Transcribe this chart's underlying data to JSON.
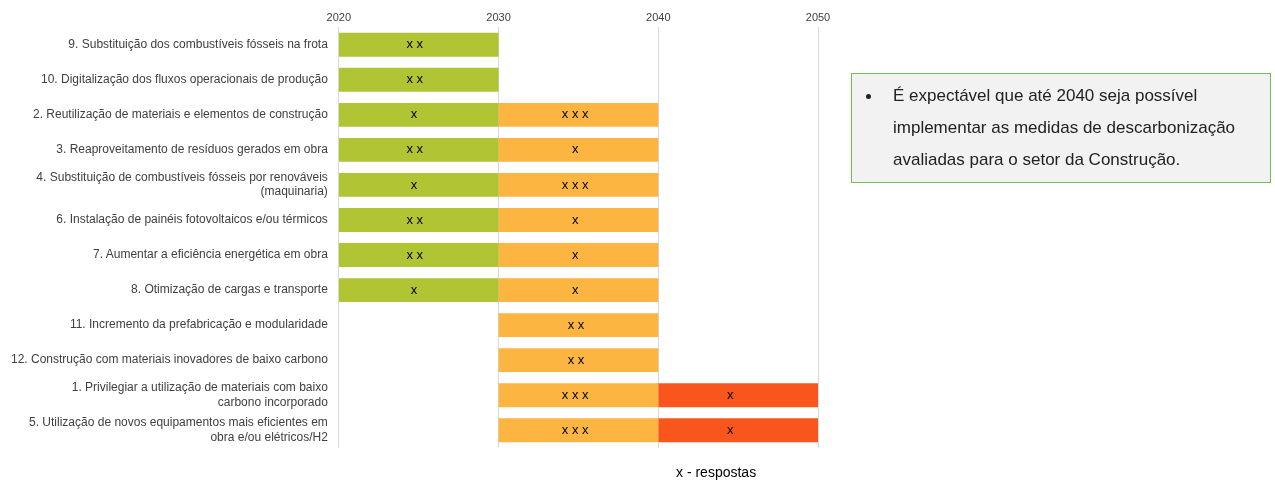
{
  "chart_data": {
    "type": "bar",
    "orientation": "horizontal",
    "grid": "x",
    "categories": [
      "9. Substituição dos combustíveis fósseis na frota",
      "10. Digitalização dos fluxos operacionais de produção",
      "2. Reutilização de materiais e elementos de construção",
      "3. Reaproveitamento de resíduos gerados em obra",
      "4. Substituição de combustíveis fósseis por renováveis (maquinaria)",
      "6. Instalação de painéis fotovoltaicos e/ou térmicos",
      "7. Aumentar a eficiência energética em obra",
      "8. Otimização de cargas e transporte",
      "11. Incremento da prefabricação e modularidade",
      "12. Construção com materiais inovadores de baixo carbono",
      "1. Privilegiar a utilização de materiais com baixo carbono incorporado",
      "5. Utilização de novos equipamentos mais eficientes em obra e/ou elétricos/H2"
    ],
    "series": [
      {
        "color": "#b0c434",
        "base": [
          2020,
          2020,
          2020,
          2020,
          2020,
          2020,
          2020,
          2020,
          null,
          null,
          null,
          null
        ],
        "values": [
          10,
          10,
          10,
          10,
          10,
          10,
          10,
          10,
          null,
          null,
          null,
          null
        ]
      },
      {
        "color": "#fbb540",
        "base": [
          null,
          null,
          2030,
          2030,
          2030,
          2030,
          2030,
          2030,
          2030,
          2030,
          2030,
          2030
        ],
        "values": [
          null,
          null,
          10,
          10,
          10,
          10,
          10,
          10,
          10,
          10,
          10,
          10
        ]
      },
      {
        "color": "#f8561c",
        "base": [
          null,
          null,
          null,
          null,
          null,
          null,
          null,
          null,
          null,
          null,
          2040,
          2040
        ],
        "values": [
          null,
          null,
          null,
          null,
          null,
          null,
          null,
          null,
          null,
          null,
          10,
          10
        ]
      }
    ],
    "xlim": [
      2020,
      2050
    ],
    "xticks": [
      2020,
      2030,
      2040,
      2050
    ],
    "annotations": [
      "É expectável que até 2040 seja possível implementar as medidas de descarbonização avaliadas para o setor da Construção.",
      "x - respostas",
      {
        "text": "x x",
        "x": 2024.75,
        "y": "9. Substituição dos combustíveis fósseis na frota"
      },
      {
        "text": "x x",
        "x": 2024.75,
        "y": "10. Digitalização dos fluxos operacionais de produção"
      },
      {
        "text": "x",
        "x": 2024.7,
        "y": "2. Reutilização de materiais e elementos de construção"
      },
      {
        "text": "x x x",
        "x": 2034.8,
        "y": "2. Reutilização de materiais e elementos de construção"
      },
      {
        "text": "x x",
        "x": 2024.75,
        "y": "3. Reaproveitamento de resíduos gerados em obra"
      },
      {
        "text": "x",
        "x": 2034.8,
        "y": "3. Reaproveitamento de resíduos gerados em obra"
      },
      {
        "text": "x",
        "x": 2024.7,
        "y": "4. Substituição de combustíveis fósseis por renováveis (maquinaria)"
      },
      {
        "text": "x x x",
        "x": 2034.8,
        "y": "4. Substituição de combustíveis fósseis por renováveis (maquinaria)"
      },
      {
        "text": "x x",
        "x": 2024.75,
        "y": "6. Instalação de painéis fotovoltaicos e/ou térmicos"
      },
      {
        "text": "x",
        "x": 2034.8,
        "y": "6. Instalação de painéis fotovoltaicos e/ou térmicos"
      },
      {
        "text": "x x",
        "x": 2024.75,
        "y": "7. Aumentar a eficiência energética em obra"
      },
      {
        "text": "x",
        "x": 2034.8,
        "y": "7. Aumentar a eficiência energética em obra"
      },
      {
        "text": "x",
        "x": 2024.7,
        "y": "8. Otimização de cargas e transporte"
      },
      {
        "text": "x",
        "x": 2034.8,
        "y": "8. Otimização de cargas e transporte"
      },
      {
        "text": "x x",
        "x": 2034.85,
        "y": "11. Incremento da prefabricação e modularidade"
      },
      {
        "text": "x x",
        "x": 2034.85,
        "y": "12. Construção com materiais inovadores de baixo carbono"
      },
      {
        "text": "x x x",
        "x": 2034.8,
        "y": "1. Privilegiar a utilização de materiais com baixo carbono incorporado"
      },
      {
        "text": "x",
        "x": 2044.5,
        "y": "1. Privilegiar a utilização de materiais com baixo carbono incorporado"
      },
      {
        "text": "x x x",
        "x": 2034.8,
        "y": "5. Utilização de novos equipamentos mais eficientes em obra e/ou elétricos/H2"
      },
      {
        "text": "x",
        "x": 2044.5,
        "y": "5. Utilização de novos equipamentos mais eficientes em obra e/ou elétricos/H2"
      }
    ]
  }
}
